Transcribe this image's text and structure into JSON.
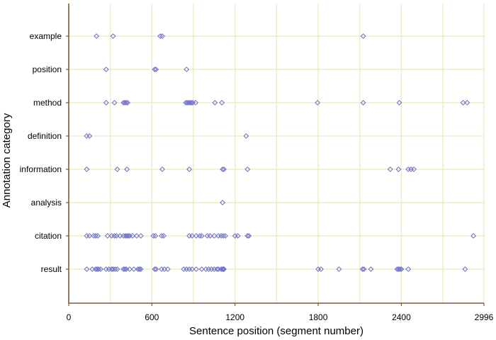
{
  "chart_data": {
    "type": "scatter",
    "xlabel": "Sentence position (segment number)",
    "ylabel": "Annotation category",
    "xlim": [
      0,
      2996
    ],
    "x_ticks": [
      0,
      600,
      1200,
      1800,
      2400,
      2996
    ],
    "x_tick_labels": [
      "0",
      "600",
      "1200",
      "1800",
      "2400",
      "2996"
    ],
    "x_minor_gridlines": [
      300,
      900,
      1500,
      2100,
      2700
    ],
    "grid": "vertical gridlines and horizontal category lines",
    "legend": "none",
    "categories": [
      "example",
      "position",
      "method",
      "definition",
      "information",
      "analysis",
      "citation",
      "result"
    ],
    "colors": {
      "marker": "#6a6acd",
      "gridline": "#ecedc4",
      "axis": "#7a5c3a"
    },
    "series": [
      {
        "category": "example",
        "x": [
          200,
          320,
          660,
          675,
          2125
        ]
      },
      {
        "category": "position",
        "x": [
          270,
          620,
          630,
          850
        ]
      },
      {
        "category": "method",
        "x": [
          270,
          330,
          395,
          405,
          415,
          425,
          845,
          855,
          865,
          875,
          885,
          895,
          915,
          1055,
          1105,
          1795,
          2125,
          2385,
          2845,
          2875
        ]
      },
      {
        "category": "definition",
        "x": [
          130,
          150,
          1280
        ]
      },
      {
        "category": "information",
        "x": [
          130,
          350,
          420,
          675,
          870,
          1110,
          1120,
          1290,
          2320,
          2380,
          2450,
          2470,
          2490
        ]
      },
      {
        "category": "analysis",
        "x": [
          1110
        ]
      },
      {
        "category": "citation",
        "x": [
          130,
          150,
          180,
          195,
          210,
          280,
          310,
          330,
          345,
          370,
          395,
          410,
          420,
          430,
          440,
          460,
          490,
          520,
          610,
          625,
          670,
          685,
          870,
          890,
          920,
          945,
          960,
          1000,
          1020,
          1050,
          1080,
          1100,
          1115,
          1130,
          1200,
          1220,
          1290,
          1300,
          2920
        ]
      },
      {
        "category": "result",
        "x": [
          130,
          170,
          195,
          205,
          215,
          230,
          270,
          290,
          310,
          320,
          335,
          350,
          395,
          405,
          415,
          440,
          470,
          500,
          510,
          520,
          620,
          630,
          670,
          690,
          715,
          830,
          850,
          870,
          890,
          920,
          960,
          990,
          1010,
          1030,
          1050,
          1070,
          1080,
          1100,
          1110,
          1115,
          1120,
          1800,
          1820,
          1950,
          2120,
          2130,
          2180,
          2370,
          2380,
          2390,
          2400,
          2450,
          2860
        ]
      }
    ]
  }
}
